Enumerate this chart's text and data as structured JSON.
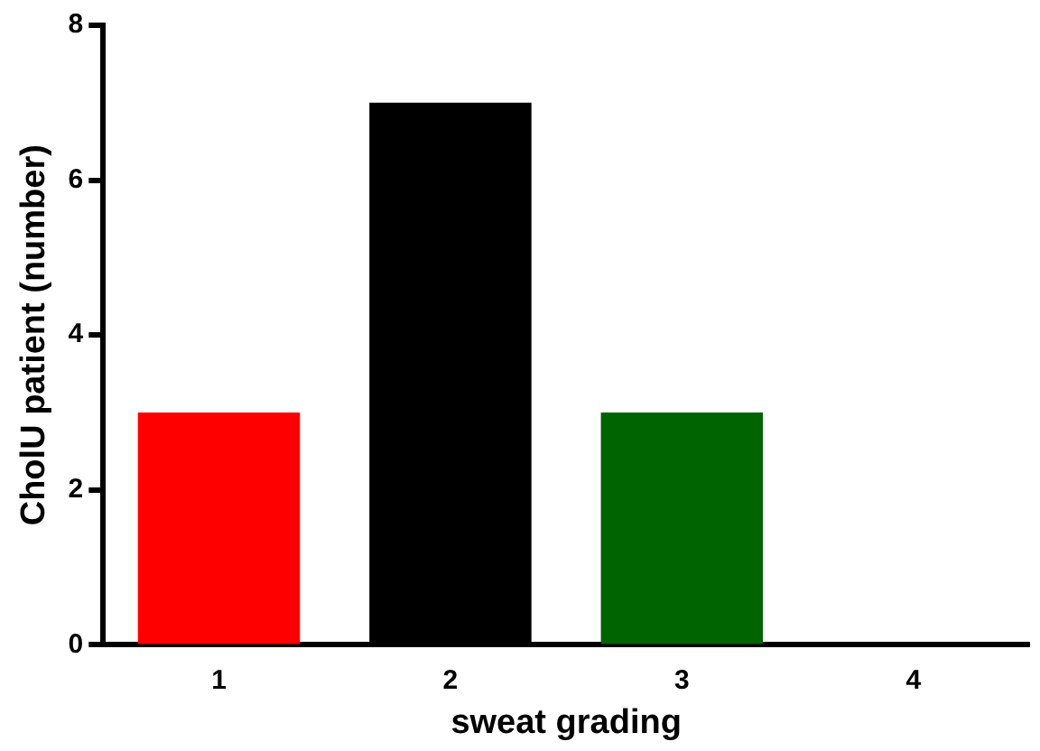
{
  "chart_data": {
    "type": "bar",
    "xlabel": "sweat grading",
    "ylabel": "CholU patient (number)",
    "categories": [
      "1",
      "2",
      "3",
      "4"
    ],
    "values": [
      3,
      7,
      3,
      0
    ],
    "colors": [
      "#ff0000",
      "#000000",
      "#006400",
      "#000000"
    ],
    "ylim": [
      0,
      8
    ],
    "yticks": [
      0,
      2,
      4,
      6,
      8
    ],
    "grid": false,
    "legend": false
  }
}
